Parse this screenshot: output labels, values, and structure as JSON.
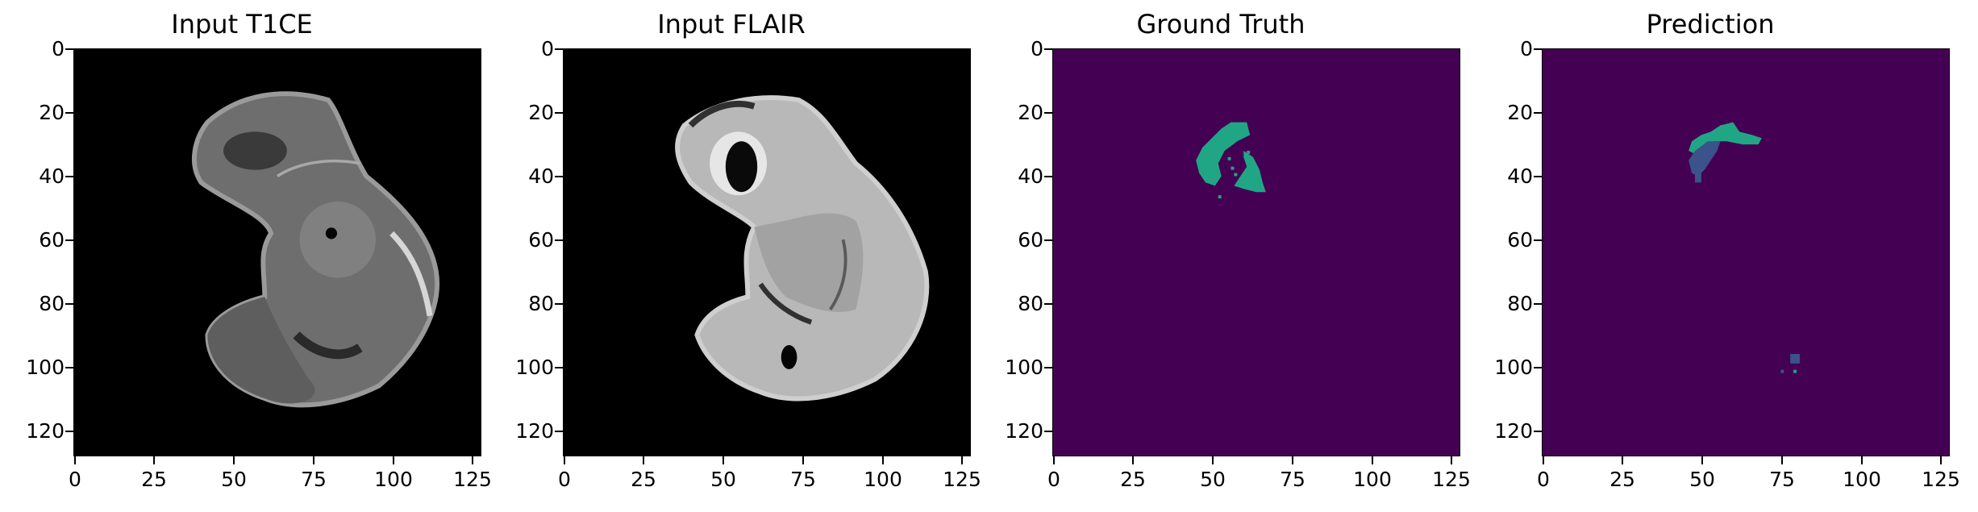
{
  "panels": [
    {
      "title": "Input T1CE",
      "kind": "t1ce"
    },
    {
      "title": "Input FLAIR",
      "kind": "flair"
    },
    {
      "title": "Ground Truth",
      "kind": "gt"
    },
    {
      "title": "Prediction",
      "kind": "pred"
    }
  ],
  "axes": {
    "y_ticks": [
      "0",
      "20",
      "40",
      "60",
      "80",
      "100",
      "120"
    ],
    "x_ticks": [
      "0",
      "25",
      "50",
      "75",
      "100",
      "125"
    ]
  },
  "colors": {
    "seg_background": "#440154",
    "class_edema": "#21a685",
    "class_necrotic": "#3b528b",
    "class_enhancing": "#fde725"
  }
}
